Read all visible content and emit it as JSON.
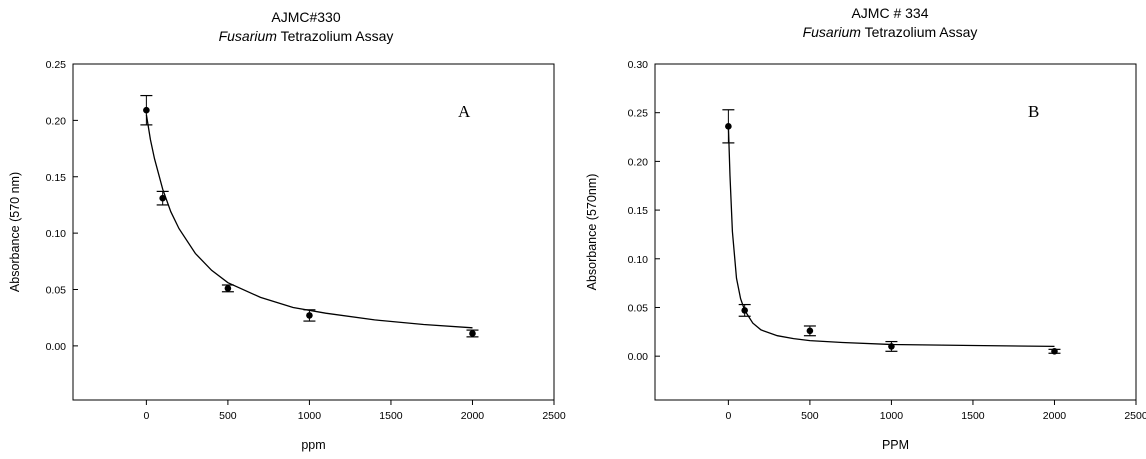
{
  "chart_data": [
    {
      "type": "scatter",
      "title": "AJMC#330",
      "subtitle_italic": "Fusarium",
      "subtitle_rest": " Tetrazolium Assay",
      "panel_label": "A",
      "xlabel": "ppm",
      "ylabel": "Absorbance (570 nm)",
      "xlim": [
        -450,
        2500
      ],
      "ylim": [
        -0.048,
        0.25
      ],
      "xticks": [
        0,
        500,
        1000,
        1500,
        2000,
        2500
      ],
      "yticks": [
        "0.00",
        "0.05",
        "0.10",
        "0.15",
        "0.20",
        "0.25"
      ],
      "grid": false,
      "legend": "none",
      "points": [
        {
          "x": 0,
          "y": 0.209,
          "err": 0.013
        },
        {
          "x": 100,
          "y": 0.131,
          "err": 0.006
        },
        {
          "x": 500,
          "y": 0.051,
          "err": 0.003
        },
        {
          "x": 1000,
          "y": 0.027,
          "err": 0.005
        },
        {
          "x": 2000,
          "y": 0.011,
          "err": 0.003
        }
      ],
      "fit_curve": {
        "x": [
          0,
          25,
          50,
          100,
          150,
          200,
          300,
          400,
          500,
          700,
          900,
          1100,
          1400,
          1700,
          2000
        ],
        "y": [
          0.205,
          0.183,
          0.166,
          0.139,
          0.119,
          0.104,
          0.082,
          0.067,
          0.056,
          0.043,
          0.034,
          0.029,
          0.023,
          0.019,
          0.016
        ]
      }
    },
    {
      "type": "scatter",
      "title": "AJMC # 334",
      "subtitle_italic": "Fusarium",
      "subtitle_rest": " Tetrazolium Assay",
      "panel_label": "B",
      "xlabel": "PPM",
      "ylabel": "Absorbance (570nm)",
      "xlim": [
        -450,
        2500
      ],
      "ylim": [
        -0.045,
        0.3
      ],
      "xticks": [
        0,
        500,
        1000,
        1500,
        2000,
        2500
      ],
      "yticks": [
        "0.00",
        "0.05",
        "0.10",
        "0.15",
        "0.20",
        "0.25",
        "0.30"
      ],
      "grid": false,
      "legend": "none",
      "points": [
        {
          "x": 0,
          "y": 0.236,
          "err": 0.017
        },
        {
          "x": 100,
          "y": 0.047,
          "err": 0.006
        },
        {
          "x": 500,
          "y": 0.026,
          "err": 0.005
        },
        {
          "x": 1000,
          "y": 0.01,
          "err": 0.005
        },
        {
          "x": 2000,
          "y": 0.005,
          "err": 0.002
        }
      ],
      "fit_curve": {
        "x": [
          0,
          10,
          25,
          50,
          75,
          100,
          150,
          200,
          300,
          400,
          500,
          700,
          1000,
          1500,
          2000
        ],
        "y": [
          0.236,
          0.185,
          0.128,
          0.08,
          0.059,
          0.047,
          0.034,
          0.027,
          0.021,
          0.018,
          0.016,
          0.014,
          0.012,
          0.011,
          0.01
        ]
      }
    }
  ]
}
